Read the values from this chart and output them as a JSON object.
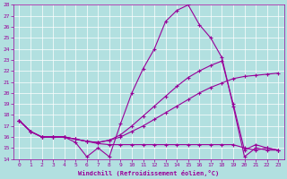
{
  "background_color": "#b2e0e0",
  "grid_color": "#ffffff",
  "line_color": "#990099",
  "xlabel": "Windchill (Refroidissement éolien,°C)",
  "ylim": [
    14,
    28
  ],
  "xlim": [
    -0.5,
    23.5
  ],
  "yticks": [
    14,
    15,
    16,
    17,
    18,
    19,
    20,
    21,
    22,
    23,
    24,
    25,
    26,
    27,
    28
  ],
  "xticks": [
    0,
    1,
    2,
    3,
    4,
    5,
    6,
    7,
    8,
    9,
    10,
    11,
    12,
    13,
    14,
    15,
    16,
    17,
    18,
    19,
    20,
    21,
    22,
    23
  ],
  "line1": [
    17.5,
    16.5,
    16.0,
    16.0,
    16.0,
    15.5,
    14.2,
    15.0,
    14.2,
    17.2,
    20.0,
    22.2,
    24.0,
    26.5,
    27.5,
    28.0,
    26.2,
    25.0,
    23.2,
    18.8,
    14.2,
    15.0,
    14.8,
    14.8
  ],
  "line2": [
    17.5,
    16.5,
    16.0,
    16.0,
    16.0,
    15.8,
    15.6,
    15.4,
    15.3,
    15.3,
    15.3,
    15.3,
    15.3,
    15.3,
    15.3,
    15.3,
    15.3,
    15.3,
    15.3,
    15.3,
    15.0,
    14.8,
    15.0,
    14.8
  ],
  "line3": [
    17.5,
    16.5,
    16.0,
    16.0,
    16.0,
    15.8,
    15.6,
    15.5,
    15.7,
    16.0,
    16.5,
    17.0,
    17.6,
    18.2,
    18.8,
    19.4,
    20.0,
    20.5,
    20.9,
    21.3,
    21.5,
    21.6,
    21.7,
    21.8
  ],
  "line4": [
    17.5,
    16.5,
    16.0,
    16.0,
    16.0,
    15.8,
    15.6,
    15.5,
    15.7,
    16.2,
    17.0,
    17.9,
    18.8,
    19.7,
    20.6,
    21.4,
    22.0,
    22.5,
    22.9,
    19.0,
    14.8,
    15.3,
    15.0,
    14.8
  ]
}
